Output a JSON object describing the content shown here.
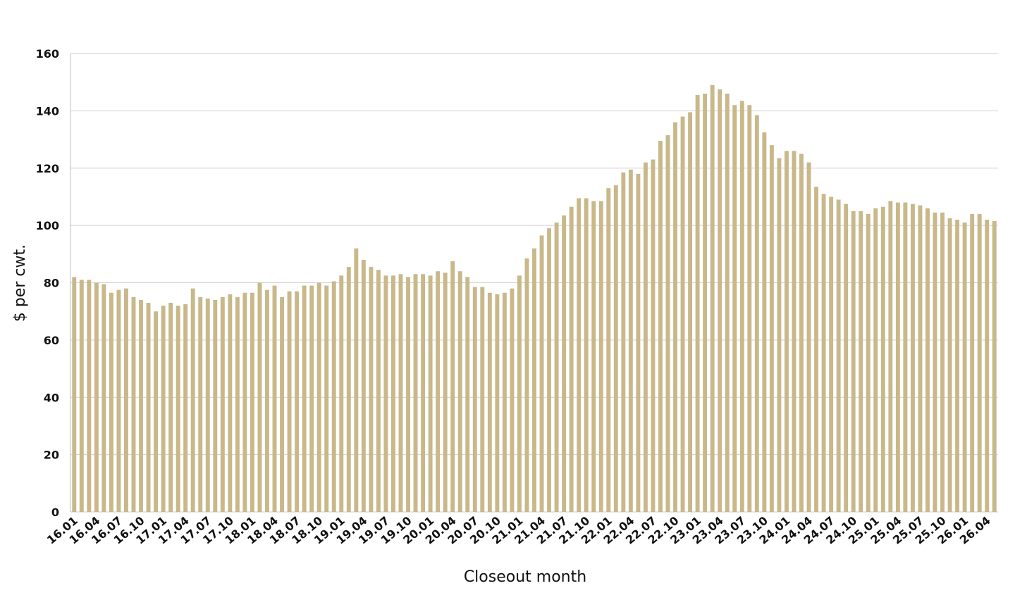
{
  "chart_data": {
    "type": "bar",
    "y_label": "$ per cwt.",
    "x_label": "Closeout month",
    "categories": [
      "16.01",
      null,
      null,
      "16.04",
      null,
      null,
      "16.07",
      null,
      null,
      "16.10",
      null,
      null,
      "17.01",
      null,
      null,
      "17.04",
      null,
      null,
      "17.07",
      null,
      null,
      "17.10",
      null,
      null,
      "18.01",
      null,
      null,
      "18.04",
      null,
      null,
      "18.07",
      null,
      null,
      "18.10",
      null,
      null,
      "19.01",
      null,
      null,
      "19.04",
      null,
      null,
      "19.07",
      null,
      null,
      "19.10",
      null,
      null,
      "20.01",
      null,
      null,
      "20.04",
      null,
      null,
      "20.07",
      null,
      null,
      "20.10",
      null,
      null,
      "21.01",
      null,
      null,
      "21.04",
      null,
      null,
      "21.07",
      null,
      null,
      "21.10",
      null,
      null,
      "22.01",
      null,
      null,
      "22.04",
      null,
      null,
      "22.07",
      null,
      null,
      "22.10",
      null,
      null,
      "23.01",
      null,
      null,
      "23.04",
      null,
      null,
      "23.07",
      null,
      null,
      "23.10",
      null,
      null,
      "24.01",
      null,
      null,
      "24.04",
      null,
      null,
      "24.07",
      null,
      null,
      "24.10",
      null,
      null,
      "25.01",
      null,
      null,
      "25.04",
      null,
      null,
      "25.07",
      null,
      null,
      "25.10",
      null,
      null,
      "26.01",
      null,
      null,
      "26.04",
      null
    ],
    "values": [
      82,
      81,
      81,
      80,
      79.5,
      76.5,
      77.5,
      78,
      75,
      74,
      73,
      70,
      72,
      73,
      72,
      72.5,
      78,
      75,
      74.5,
      74,
      75,
      76,
      75,
      76.5,
      76.5,
      80,
      77.5,
      79,
      75,
      77,
      77,
      79,
      79,
      80,
      79,
      80.5,
      82.5,
      85.5,
      92,
      88,
      85.5,
      84.5,
      82.5,
      82.5,
      83,
      82,
      83,
      83,
      82.5,
      84,
      83.5,
      87.5,
      84,
      82,
      78.5,
      78.5,
      76.5,
      76,
      76.5,
      78,
      82.5,
      88.5,
      92,
      96.5,
      99,
      101,
      103.5,
      106.5,
      109.5,
      109.5,
      108.5,
      108.5,
      113,
      114,
      118.5,
      119.5,
      118,
      122,
      123,
      129.5,
      131.5,
      136,
      138,
      139.5,
      145.5,
      146,
      149,
      147.5,
      146,
      142,
      143.5,
      142,
      138.5,
      132.5,
      128,
      123.5,
      126,
      126,
      125,
      122,
      113.5,
      111,
      110,
      109,
      107.5,
      105,
      105,
      104,
      106,
      106.5,
      108.5,
      108,
      108,
      107.5,
      107,
      106,
      104.5,
      104.5,
      102.5,
      102,
      101,
      104,
      104,
      102,
      101.5
    ],
    "color": "#c8b88a",
    "ylim": [
      0,
      160
    ],
    "yticks": [
      0,
      20,
      40,
      60,
      80,
      100,
      120,
      140,
      160
    ],
    "grid": true
  }
}
